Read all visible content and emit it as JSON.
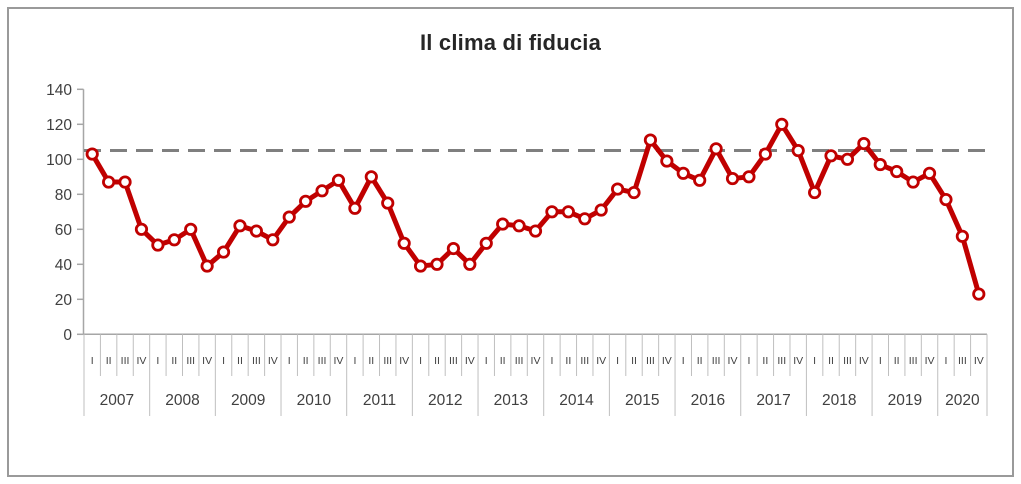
{
  "chart_data": {
    "type": "line",
    "title": "Il clima di fiducia",
    "xlabel": "",
    "ylabel": "",
    "ylim": [
      0,
      140
    ],
    "yticks": [
      0,
      20,
      40,
      60,
      80,
      100,
      120,
      140
    ],
    "grid": "off",
    "legend": "none",
    "reference_line": {
      "value": 105,
      "style": "dashed",
      "color": "#7f7f7f"
    },
    "series_name": "Clima di fiducia",
    "line_color": "#c00000",
    "marker_fill": "#ffffff",
    "axis_text_color": "#404040",
    "tick_line_color": "#bfbfbf",
    "axis_line_color": "#a6a6a6",
    "years": [
      {
        "year": "2007",
        "quarters": [
          "I",
          "II",
          "III",
          "IV"
        ],
        "values": [
          103,
          87,
          87,
          60
        ]
      },
      {
        "year": "2008",
        "quarters": [
          "I",
          "II",
          "III",
          "IV"
        ],
        "values": [
          51,
          54,
          60,
          39
        ]
      },
      {
        "year": "2009",
        "quarters": [
          "I",
          "II",
          "III",
          "IV"
        ],
        "values": [
          47,
          62,
          59,
          54
        ]
      },
      {
        "year": "2010",
        "quarters": [
          "I",
          "II",
          "III",
          "IV"
        ],
        "values": [
          67,
          76,
          82,
          88
        ]
      },
      {
        "year": "2011",
        "quarters": [
          "I",
          "II",
          "III",
          "IV"
        ],
        "values": [
          72,
          90,
          75,
          52
        ]
      },
      {
        "year": "2012",
        "quarters": [
          "I",
          "II",
          "III",
          "IV"
        ],
        "values": [
          39,
          40,
          49,
          40
        ]
      },
      {
        "year": "2013",
        "quarters": [
          "I",
          "II",
          "III",
          "IV"
        ],
        "values": [
          52,
          63,
          62,
          59
        ]
      },
      {
        "year": "2014",
        "quarters": [
          "I",
          "II",
          "III",
          "IV"
        ],
        "values": [
          70,
          70,
          66,
          71
        ]
      },
      {
        "year": "2015",
        "quarters": [
          "I",
          "II",
          "III",
          "IV"
        ],
        "values": [
          83,
          81,
          111,
          99
        ]
      },
      {
        "year": "2016",
        "quarters": [
          "I",
          "II",
          "III",
          "IV"
        ],
        "values": [
          92,
          88,
          106,
          89
        ]
      },
      {
        "year": "2017",
        "quarters": [
          "I",
          "II",
          "III",
          "IV"
        ],
        "values": [
          90,
          103,
          120,
          105
        ]
      },
      {
        "year": "2018",
        "quarters": [
          "I",
          "II",
          "III",
          "IV"
        ],
        "values": [
          81,
          102,
          100,
          109
        ]
      },
      {
        "year": "2019",
        "quarters": [
          "I",
          "II",
          "III",
          "IV"
        ],
        "values": [
          97,
          93,
          87,
          92
        ]
      },
      {
        "year": "2020",
        "quarters": [
          "I",
          "III",
          "IV"
        ],
        "values": [
          77,
          56,
          23
        ]
      }
    ]
  }
}
